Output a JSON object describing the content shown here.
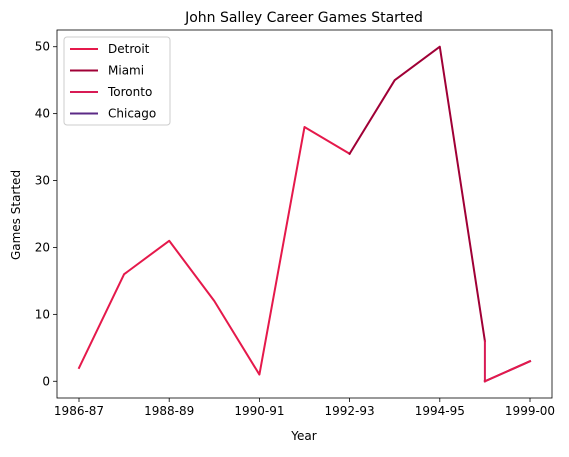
{
  "chart_data": {
    "type": "line",
    "title": "John Salley Career Games Started",
    "xlabel": "Year",
    "ylabel": "Games Started",
    "x_range": [
      0,
      10
    ],
    "ylim": [
      -2.5,
      52.5
    ],
    "x_ticks": [
      {
        "x": 0,
        "label": "1986-87"
      },
      {
        "x": 2,
        "label": "1988-89"
      },
      {
        "x": 4,
        "label": "1990-91"
      },
      {
        "x": 6,
        "label": "1992-93"
      },
      {
        "x": 8,
        "label": "1994-95"
      },
      {
        "x": 10,
        "label": "1999-00"
      }
    ],
    "y_ticks": [
      0,
      10,
      20,
      30,
      40,
      50
    ],
    "grid": false,
    "legend_position": "top-left",
    "series": [
      {
        "name": "Detroit",
        "color": "#e5194b",
        "points": [
          [
            0,
            2
          ],
          [
            1,
            16
          ],
          [
            2,
            21
          ],
          [
            3,
            12
          ],
          [
            4,
            1
          ],
          [
            5,
            38
          ],
          [
            6,
            34
          ]
        ]
      },
      {
        "name": "Miami",
        "color": "#a00036",
        "points": [
          [
            6,
            34
          ],
          [
            7,
            45
          ],
          [
            8,
            50
          ],
          [
            9,
            6
          ]
        ]
      },
      {
        "name": "Toronto",
        "color": "#d81b55",
        "points": [
          [
            9,
            6
          ],
          [
            9,
            0
          ]
        ]
      },
      {
        "name": "Chicago",
        "color": "#5b2a86",
        "points": [
          [
            9,
            0
          ],
          [
            10,
            3
          ]
        ]
      }
    ],
    "overlay": {
      "color": "#e5194b",
      "points": [
        [
          9,
          0
        ],
        [
          10,
          3
        ]
      ]
    }
  }
}
